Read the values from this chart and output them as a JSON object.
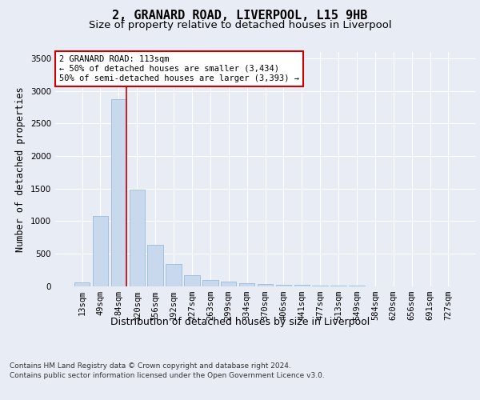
{
  "title": "2, GRANARD ROAD, LIVERPOOL, L15 9HB",
  "subtitle": "Size of property relative to detached houses in Liverpool",
  "xlabel": "Distribution of detached houses by size in Liverpool",
  "ylabel": "Number of detached properties",
  "categories": [
    "13sqm",
    "49sqm",
    "84sqm",
    "120sqm",
    "156sqm",
    "192sqm",
    "227sqm",
    "263sqm",
    "299sqm",
    "334sqm",
    "370sqm",
    "406sqm",
    "441sqm",
    "477sqm",
    "513sqm",
    "549sqm",
    "584sqm",
    "620sqm",
    "656sqm",
    "691sqm",
    "727sqm"
  ],
  "values": [
    50,
    1080,
    2880,
    1480,
    630,
    340,
    165,
    90,
    65,
    45,
    35,
    20,
    15,
    10,
    8,
    5,
    0,
    0,
    0,
    0,
    0
  ],
  "bar_color": "#c9d9ed",
  "bar_edge_color": "#8ab4d4",
  "vline_color": "#cc0000",
  "vline_x_index": 2.42,
  "annotation_text": "2 GRANARD ROAD: 113sqm\n← 50% of detached houses are smaller (3,434)\n50% of semi-detached houses are larger (3,393) →",
  "annotation_box_color": "#ffffff",
  "annotation_box_edge": "#cc0000",
  "ylim": [
    0,
    3600
  ],
  "yticks": [
    0,
    500,
    1000,
    1500,
    2000,
    2500,
    3000,
    3500
  ],
  "background_color": "#e8edf5",
  "plot_bg_color": "#e8edf5",
  "footer_line1": "Contains HM Land Registry data © Crown copyright and database right 2024.",
  "footer_line2": "Contains public sector information licensed under the Open Government Licence v3.0.",
  "title_fontsize": 11,
  "subtitle_fontsize": 9.5,
  "xlabel_fontsize": 9,
  "ylabel_fontsize": 8.5,
  "tick_fontsize": 7.5,
  "footer_fontsize": 6.5
}
